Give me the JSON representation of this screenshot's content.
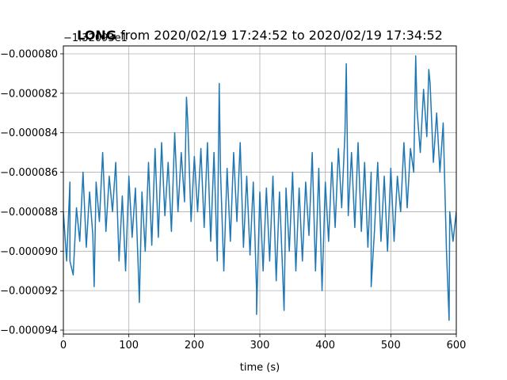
{
  "chart_data": {
    "type": "line",
    "title_bold": "LONG",
    "title_rest": " from 2020/02/19 17:24:52 to 2020/02/19 17:34:52",
    "offset_text": "−1.32093e1",
    "xlabel": "time (s)",
    "ylabel": "",
    "xlim": [
      0,
      600
    ],
    "ylim": [
      -9.42e-05,
      -7.96e-05
    ],
    "x_ticks": [
      0,
      100,
      200,
      300,
      400,
      500,
      600
    ],
    "x_tick_labels": [
      "0",
      "100",
      "200",
      "300",
      "400",
      "500",
      "600"
    ],
    "y_ticks": [
      -8e-05,
      -8.2e-05,
      -8.4e-05,
      -8.6e-05,
      -8.8e-05,
      -9e-05,
      -9.2e-05,
      -9.4e-05
    ],
    "y_tick_labels": [
      "−0.000080",
      "−0.000082",
      "−0.000084",
      "−0.000086",
      "−0.000088",
      "−0.000090",
      "−0.000092",
      "−0.000094"
    ],
    "grid": true,
    "line_color": "#1f77b4",
    "series": [
      {
        "x": [
          0,
          5,
          10,
          15,
          20,
          25,
          30,
          35,
          40,
          45,
          50,
          55,
          60,
          65,
          70,
          75,
          80,
          85,
          90,
          95,
          100,
          105,
          110,
          115,
          120,
          125,
          130,
          135,
          140,
          145,
          150,
          155,
          160,
          165,
          170,
          175,
          180,
          185,
          190,
          195,
          200,
          205,
          210,
          215,
          220,
          225,
          230,
          235,
          240,
          245,
          250,
          255,
          260,
          265,
          270,
          275,
          280,
          285,
          290,
          295,
          300,
          305,
          310,
          315,
          320,
          325,
          330,
          335,
          340,
          345,
          350,
          355,
          360,
          365,
          370,
          375,
          380,
          385,
          390,
          395,
          400,
          405,
          410,
          415,
          420,
          425,
          430,
          435,
          440,
          445,
          450,
          455,
          460,
          465,
          470,
          475,
          480,
          485,
          490,
          495,
          500,
          505,
          510,
          515,
          520,
          525,
          530,
          535,
          540,
          545,
          550,
          555,
          560,
          565,
          570,
          575,
          580,
          585,
          590,
          595,
          600
        ],
        "y": [
          -8.8e-05,
          -9.05e-05,
          -8.65e-05,
          -9.12e-05,
          -8.78e-05,
          -8.95e-05,
          -8.6e-05,
          -8.98e-05,
          -8.7e-05,
          -8.92e-05,
          -8.65e-05,
          -8.85e-05,
          -8.5e-05,
          -8.9e-05,
          -8.62e-05,
          -8.8e-05,
          -8.55e-05,
          -9.05e-05,
          -8.72e-05,
          -9.1e-05,
          -8.62e-05,
          -8.93e-05,
          -8.68e-05,
          -9.15e-05,
          -8.7e-05,
          -9e-05,
          -8.55e-05,
          -8.97e-05,
          -8.48e-05,
          -8.93e-05,
          -8.45e-05,
          -8.82e-05,
          -8.55e-05,
          -8.9e-05,
          -8.4e-05,
          -8.8e-05,
          -8.5e-05,
          -8.75e-05,
          -8.35e-05,
          -8.85e-05,
          -8.52e-05,
          -8.8e-05,
          -8.48e-05,
          -8.88e-05,
          -8.45e-05,
          -8.95e-05,
          -8.5e-05,
          -9.05e-05,
          -8.6e-05,
          -9.1e-05,
          -8.58e-05,
          -8.95e-05,
          -8.5e-05,
          -8.85e-05,
          -8.45e-05,
          -8.98e-05,
          -8.62e-05,
          -9.02e-05,
          -8.65e-05,
          -9.2e-05,
          -8.7e-05,
          -9.1e-05,
          -8.68e-05,
          -9.05e-05,
          -8.62e-05,
          -9.15e-05,
          -8.7e-05,
          -9.12e-05,
          -8.68e-05,
          -9e-05,
          -8.6e-05,
          -9.1e-05,
          -8.68e-05,
          -9.05e-05,
          -8.65e-05,
          -8.92e-05,
          -8.5e-05,
          -9.1e-05,
          -8.58e-05,
          -9.2e-05,
          -8.65e-05,
          -8.95e-05,
          -8.55e-05,
          -8.88e-05,
          -8.48e-05,
          -8.78e-05,
          -8.4e-05,
          -8.82e-05,
          -8.5e-05,
          -8.88e-05,
          -8.45e-05,
          -8.9e-05,
          -8.55e-05,
          -8.98e-05,
          -8.6e-05,
          -8.9e-05,
          -8.55e-05,
          -8.95e-05,
          -8.62e-05,
          -9e-05,
          -8.58e-05,
          -8.95e-05,
          -8.62e-05,
          -8.8e-05,
          -8.45e-05,
          -8.78e-05,
          -8.48e-05,
          -8.6e-05,
          -8.28e-05,
          -8.5e-05,
          -8.18e-05,
          -8.42e-05,
          -8.15e-05,
          -8.55e-05,
          -8.3e-05,
          -8.6e-05,
          -8.35e-05,
          -9e-05,
          -8.8e-05,
          -8.95e-05,
          -8.8e-05
        ]
      }
    ],
    "annotations": {
      "spikes": [
        {
          "x": 10,
          "y": -9.05e-05
        },
        {
          "x": 47,
          "y": -9.18e-05
        },
        {
          "x": 116,
          "y": -9.26e-05
        },
        {
          "x": 188,
          "y": -8.22e-05
        },
        {
          "x": 238,
          "y": -8.15e-05
        },
        {
          "x": 295,
          "y": -9.32e-05
        },
        {
          "x": 337,
          "y": -9.3e-05
        },
        {
          "x": 432,
          "y": -8.05e-05
        },
        {
          "x": 470,
          "y": -9.18e-05
        },
        {
          "x": 538,
          "y": -8.01e-05
        },
        {
          "x": 558,
          "y": -8.08e-05
        },
        {
          "x": 589,
          "y": -9.35e-05
        }
      ]
    }
  }
}
